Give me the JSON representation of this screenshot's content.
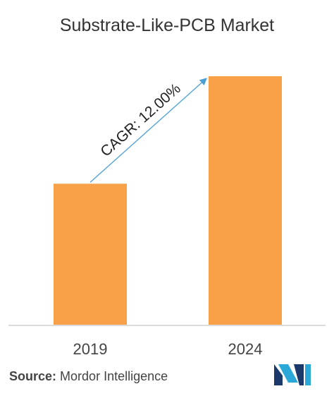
{
  "chart_data": {
    "type": "bar",
    "title": "Substrate-Like-PCB  Market",
    "categories": [
      "2019",
      "2024"
    ],
    "values": [
      1.0,
      1.7623
    ],
    "annotation": "CAGR: 12.00%",
    "bar_color": "#f9a148",
    "arrow_color": "#4a9fd5",
    "grid": false,
    "legend": "none"
  },
  "source": {
    "label": "Source:",
    "text": "Mordor Intelligence"
  },
  "logo": {
    "icon": "mordor-intelligence-logo-icon",
    "colors": [
      "#1b3a6b",
      "#2ba8d8"
    ]
  }
}
